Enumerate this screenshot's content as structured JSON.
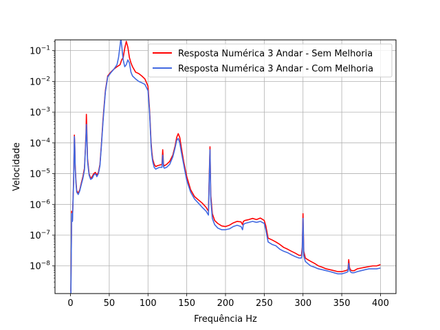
{
  "chart_data": {
    "type": "line",
    "xlabel": "Frequência Hz",
    "ylabel": "Velocidade",
    "xlim": [
      -20,
      420
    ],
    "ylim_log10": [
      -8.9,
      -0.65
    ],
    "yscale": "log",
    "grid": true,
    "legend_position": "top-right",
    "x_ticks": [
      0,
      50,
      100,
      150,
      200,
      250,
      300,
      350,
      400
    ],
    "x_tick_labels": [
      "0",
      "50",
      "100",
      "150",
      "200",
      "250",
      "300",
      "350",
      "400"
    ],
    "y_ticks": [
      1e-08,
      1e-07,
      1e-06,
      1e-05,
      0.0001,
      0.001,
      0.01,
      0.1
    ],
    "y_tick_labels": [
      {
        "base": "10",
        "exp": "−8"
      },
      {
        "base": "10",
        "exp": "−7"
      },
      {
        "base": "10",
        "exp": "−6"
      },
      {
        "base": "10",
        "exp": "−5"
      },
      {
        "base": "10",
        "exp": "−4"
      },
      {
        "base": "10",
        "exp": "−3"
      },
      {
        "base": "10",
        "exp": "−2"
      },
      {
        "base": "10",
        "exp": "−1"
      }
    ],
    "series": [
      {
        "name": "Resposta Numérica 3 Andar - Sem Melhoria",
        "color": "#ff0000",
        "x": [
          0.5,
          1.5,
          2.5,
          4,
          5,
          5.5,
          6,
          7,
          8,
          10,
          12,
          14,
          16,
          18,
          19,
          20,
          20.5,
          21,
          22,
          24,
          26,
          28,
          30,
          32,
          34,
          36,
          38,
          40,
          42,
          45,
          48,
          52,
          56,
          60,
          64,
          66,
          68,
          70,
          72,
          74,
          76,
          78,
          80,
          84,
          88,
          92,
          96,
          100,
          102,
          104,
          105,
          106,
          108,
          110,
          112,
          115,
          118,
          119,
          120,
          121,
          124,
          128,
          132,
          135,
          137,
          139,
          141,
          143,
          146,
          150,
          155,
          160,
          165,
          170,
          175,
          178,
          179,
          180,
          181,
          183,
          186,
          190,
          195,
          200,
          205,
          210,
          215,
          220,
          222,
          223,
          225,
          230,
          235,
          240,
          245,
          250,
          252,
          255,
          260,
          265,
          270,
          275,
          280,
          285,
          290,
          295,
          298,
          299,
          300,
          301,
          303,
          306,
          310,
          315,
          320,
          325,
          330,
          335,
          340,
          345,
          350,
          355,
          358,
          359,
          360,
          361,
          363,
          366,
          370,
          375,
          380,
          385,
          390,
          395,
          400
        ],
        "y": [
          1.5e-09,
          6e-07,
          3e-07,
          6e-06,
          0.00018,
          9e-05,
          2e-05,
          6e-06,
          2.8e-06,
          2.3e-06,
          3e-06,
          5e-06,
          8e-06,
          1.5e-05,
          5e-05,
          0.0002,
          0.00085,
          0.0003,
          3e-05,
          1e-05,
          7e-06,
          8e-06,
          1e-05,
          1.1e-05,
          9e-06,
          1.1e-05,
          2e-05,
          0.0001,
          0.0006,
          0.005,
          0.015,
          0.02,
          0.025,
          0.03,
          0.035,
          0.05,
          0.06,
          0.12,
          0.2,
          0.13,
          0.06,
          0.04,
          0.03,
          0.02,
          0.018,
          0.015,
          0.012,
          0.007,
          0.0012,
          0.0001,
          5e-05,
          3e-05,
          2e-05,
          1.7e-05,
          1.8e-05,
          1.9e-05,
          2e-05,
          6e-05,
          2e-05,
          1.8e-05,
          2e-05,
          2.5e-05,
          4e-05,
          8e-05,
          0.00015,
          0.0002,
          0.00015,
          7e-05,
          2.5e-05,
          8e-06,
          3e-06,
          1.8e-06,
          1.4e-06,
          1.1e-06,
          8e-07,
          6e-07,
          8e-06,
          7.5e-05,
          2e-06,
          5e-07,
          3e-07,
          2.4e-07,
          2e-07,
          1.9e-07,
          2.1e-07,
          2.5e-07,
          2.8e-07,
          2.7e-07,
          2.2e-07,
          2.8e-07,
          3e-07,
          3.2e-07,
          3.5e-07,
          3.2e-07,
          3.6e-07,
          3e-07,
          2e-07,
          8e-08,
          7e-08,
          6e-08,
          5e-08,
          4e-08,
          3.5e-08,
          3e-08,
          2.6e-08,
          2.2e-08,
          2.2e-08,
          4e-08,
          5e-07,
          3e-08,
          1.8e-08,
          1.6e-08,
          1.4e-08,
          1.2e-08,
          1e-08,
          9e-09,
          8e-09,
          7.5e-09,
          7e-09,
          6.5e-09,
          6.5e-09,
          7e-09,
          7.5e-09,
          1.6e-08,
          9e-09,
          7.5e-09,
          7e-09,
          7e-09,
          8e-09,
          8.5e-09,
          9e-09,
          9.5e-09,
          1e-08,
          1e-08,
          1.1e-08
        ]
      },
      {
        "name": "Resposta Numérica 3 Andar - Com Melhoria",
        "color": "#4169e1",
        "x": [
          0.5,
          1.5,
          2.5,
          4,
          5,
          5.5,
          6,
          7,
          8,
          10,
          12,
          14,
          16,
          18,
          19,
          20,
          20.5,
          21,
          22,
          24,
          26,
          28,
          30,
          32,
          34,
          36,
          38,
          40,
          42,
          45,
          48,
          52,
          56,
          60,
          62,
          64,
          65,
          66,
          68,
          70,
          72,
          74,
          76,
          78,
          80,
          84,
          88,
          92,
          96,
          100,
          102,
          104,
          105,
          106,
          108,
          110,
          112,
          115,
          118,
          119,
          120,
          121,
          124,
          128,
          132,
          135,
          137,
          139,
          141,
          143,
          146,
          150,
          155,
          160,
          165,
          170,
          175,
          178,
          179,
          180,
          181,
          183,
          186,
          190,
          195,
          200,
          205,
          210,
          215,
          220,
          222,
          223,
          225,
          230,
          235,
          240,
          245,
          250,
          252,
          255,
          260,
          265,
          270,
          275,
          280,
          285,
          290,
          295,
          298,
          299,
          300,
          301,
          303,
          306,
          310,
          315,
          320,
          325,
          330,
          335,
          340,
          345,
          350,
          355,
          358,
          359,
          360,
          361,
          363,
          366,
          370,
          375,
          380,
          385,
          390,
          395,
          400
        ],
        "y": [
          1.3e-09,
          5e-07,
          2.8e-07,
          5e-06,
          0.00016,
          8e-05,
          1.8e-05,
          5e-06,
          2.5e-06,
          2.1e-06,
          2.8e-06,
          4.5e-06,
          7e-06,
          1.3e-05,
          4.5e-05,
          0.00015,
          0.0004,
          0.0002,
          2.5e-05,
          9e-06,
          6.5e-06,
          7e-06,
          9e-06,
          1e-05,
          8e-06,
          1e-05,
          1.8e-05,
          9e-05,
          0.0005,
          0.0045,
          0.014,
          0.019,
          0.025,
          0.035,
          0.06,
          0.15,
          0.25,
          0.15,
          0.05,
          0.03,
          0.035,
          0.05,
          0.04,
          0.02,
          0.015,
          0.012,
          0.01,
          0.009,
          0.008,
          0.005,
          0.001,
          8e-05,
          4e-05,
          2.5e-05,
          1.6e-05,
          1.4e-05,
          1.5e-05,
          1.6e-05,
          1.6e-05,
          4e-05,
          1.7e-05,
          1.5e-05,
          1.6e-05,
          2e-05,
          3.5e-05,
          7e-05,
          0.00012,
          0.00014,
          0.0001,
          5e-05,
          2e-05,
          6e-06,
          2.5e-06,
          1.5e-06,
          1.1e-06,
          8e-07,
          6e-07,
          4.5e-07,
          6e-06,
          6e-05,
          1.5e-06,
          3.5e-07,
          2.2e-07,
          1.7e-07,
          1.5e-07,
          1.5e-07,
          1.6e-07,
          1.9e-07,
          2.1e-07,
          1.9e-07,
          1.5e-07,
          2.2e-07,
          2.4e-07,
          2.6e-07,
          2.8e-07,
          2.6e-07,
          2.8e-07,
          2.4e-07,
          1.5e-07,
          6e-08,
          5e-08,
          4.5e-08,
          3.5e-08,
          3e-08,
          2.7e-08,
          2.3e-08,
          2e-08,
          1.8e-08,
          1.8e-08,
          3e-08,
          3.5e-07,
          2.2e-08,
          1.4e-08,
          1.2e-08,
          1e-08,
          9e-09,
          8e-09,
          7.5e-09,
          7e-09,
          6.5e-09,
          6e-09,
          5.5e-09,
          5.5e-09,
          6e-09,
          6.5e-09,
          1.2e-08,
          7.5e-09,
          6.5e-09,
          6e-09,
          6e-09,
          6.5e-09,
          7e-09,
          7.5e-09,
          8e-09,
          8e-09,
          8e-09,
          8.5e-09
        ]
      }
    ]
  }
}
